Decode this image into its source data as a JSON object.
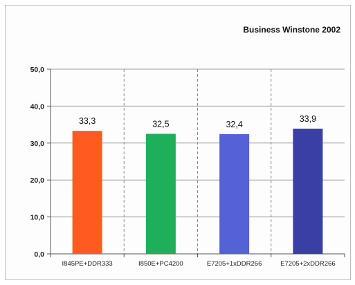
{
  "chart_data": {
    "type": "bar",
    "title": "Business Winstone 2002",
    "categories": [
      "I845PE+DDR333",
      "I850E+PC4200",
      "E7205+1xDDR266",
      "E7205+2xDDR266"
    ],
    "values": [
      33.3,
      32.5,
      32.4,
      33.9
    ],
    "value_labels": [
      "33,3",
      "32,5",
      "32,4",
      "33,9"
    ],
    "colors": [
      "#ff5a1f",
      "#1fae5a",
      "#5561d6",
      "#3a3fa6"
    ],
    "yticks": [
      0,
      10,
      20,
      30,
      40,
      50
    ],
    "ytick_labels": [
      "0,0",
      "10,0",
      "20,0",
      "30,0",
      "40,0",
      "50,0"
    ],
    "ylim": [
      0,
      50
    ],
    "xlabel": "",
    "ylabel": "",
    "grid": true,
    "legend": "none"
  }
}
